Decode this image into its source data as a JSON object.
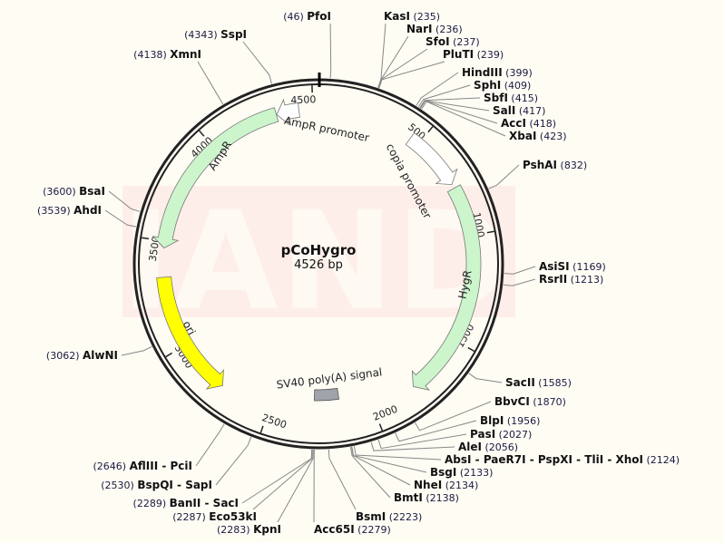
{
  "plasmid": {
    "name": "pCoHygro",
    "length_label": "4526 bp",
    "length": 4526
  },
  "watermark": "TIANDZ",
  "colors": {
    "background": "#fffcf4",
    "backbone": "#222222",
    "gene": "#ccf5cc",
    "ori": "#ffff00",
    "promoter": "#ffffff",
    "polyA": "#a0a4aa",
    "watermark": "#fde8e4"
  },
  "ticks": [
    "500",
    "1000",
    "1500",
    "2000",
    "2500",
    "3000",
    "3500",
    "4000",
    "4500"
  ],
  "features": [
    {
      "name": "AmpR promoter",
      "start": 4435,
      "end": 4330,
      "type": "promoter"
    },
    {
      "name": "AmpR",
      "start": 4328,
      "end": 3468,
      "type": "gene"
    },
    {
      "name": "ori",
      "start": 3332,
      "end": 2743,
      "type": "ori"
    },
    {
      "name": "copia promoter",
      "start": 455,
      "end": 745,
      "type": "promoter"
    },
    {
      "name": "HygR",
      "start": 765,
      "end": 1790,
      "type": "gene"
    },
    {
      "name": "SV40 poly(A) signal",
      "start": 2155,
      "end": 2285,
      "type": "polyA"
    }
  ],
  "enzymes": [
    {
      "name": "PfoI",
      "pos": "46"
    },
    {
      "name": "KasI",
      "pos": "235"
    },
    {
      "name": "NarI",
      "pos": "236"
    },
    {
      "name": "SfoI",
      "pos": "237"
    },
    {
      "name": "PluTI",
      "pos": "239"
    },
    {
      "name": "HindIII",
      "pos": "399"
    },
    {
      "name": "SphI",
      "pos": "409"
    },
    {
      "name": "SbfI",
      "pos": "415"
    },
    {
      "name": "SalI",
      "pos": "417"
    },
    {
      "name": "AccI",
      "pos": "418"
    },
    {
      "name": "XbaI",
      "pos": "423"
    },
    {
      "name": "PshAI",
      "pos": "832"
    },
    {
      "name": "AsiSI",
      "pos": "1169"
    },
    {
      "name": "RsrII",
      "pos": "1213"
    },
    {
      "name": "SacII",
      "pos": "1585"
    },
    {
      "name": "BbvCI",
      "pos": "1870"
    },
    {
      "name": "BlpI",
      "pos": "1956"
    },
    {
      "name": "PasI",
      "pos": "2027"
    },
    {
      "name": "AleI",
      "pos": "2056"
    },
    {
      "name": "AbsI - PaeR7I - PspXI - TliI - XhoI",
      "pos": "2124"
    },
    {
      "name": "BsgI",
      "pos": "2133"
    },
    {
      "name": "NheI",
      "pos": "2134"
    },
    {
      "name": "BmtI",
      "pos": "2138"
    },
    {
      "name": "BsmI",
      "pos": "2223"
    },
    {
      "name": "Acc65I",
      "pos": "2279"
    },
    {
      "name": "KpnI",
      "pos": "2283"
    },
    {
      "name": "Eco53kI",
      "pos": "2287"
    },
    {
      "name": "BanII - SacI",
      "pos": "2289"
    },
    {
      "name": "BspQI - SapI",
      "pos": "2530"
    },
    {
      "name": "AflIII - PciI",
      "pos": "2646"
    },
    {
      "name": "AlwNI",
      "pos": "3062"
    },
    {
      "name": "AhdI",
      "pos": "3539"
    },
    {
      "name": "BsaI",
      "pos": "3600"
    },
    {
      "name": "XmnI",
      "pos": "4138"
    },
    {
      "name": "SspI",
      "pos": "4343"
    }
  ]
}
